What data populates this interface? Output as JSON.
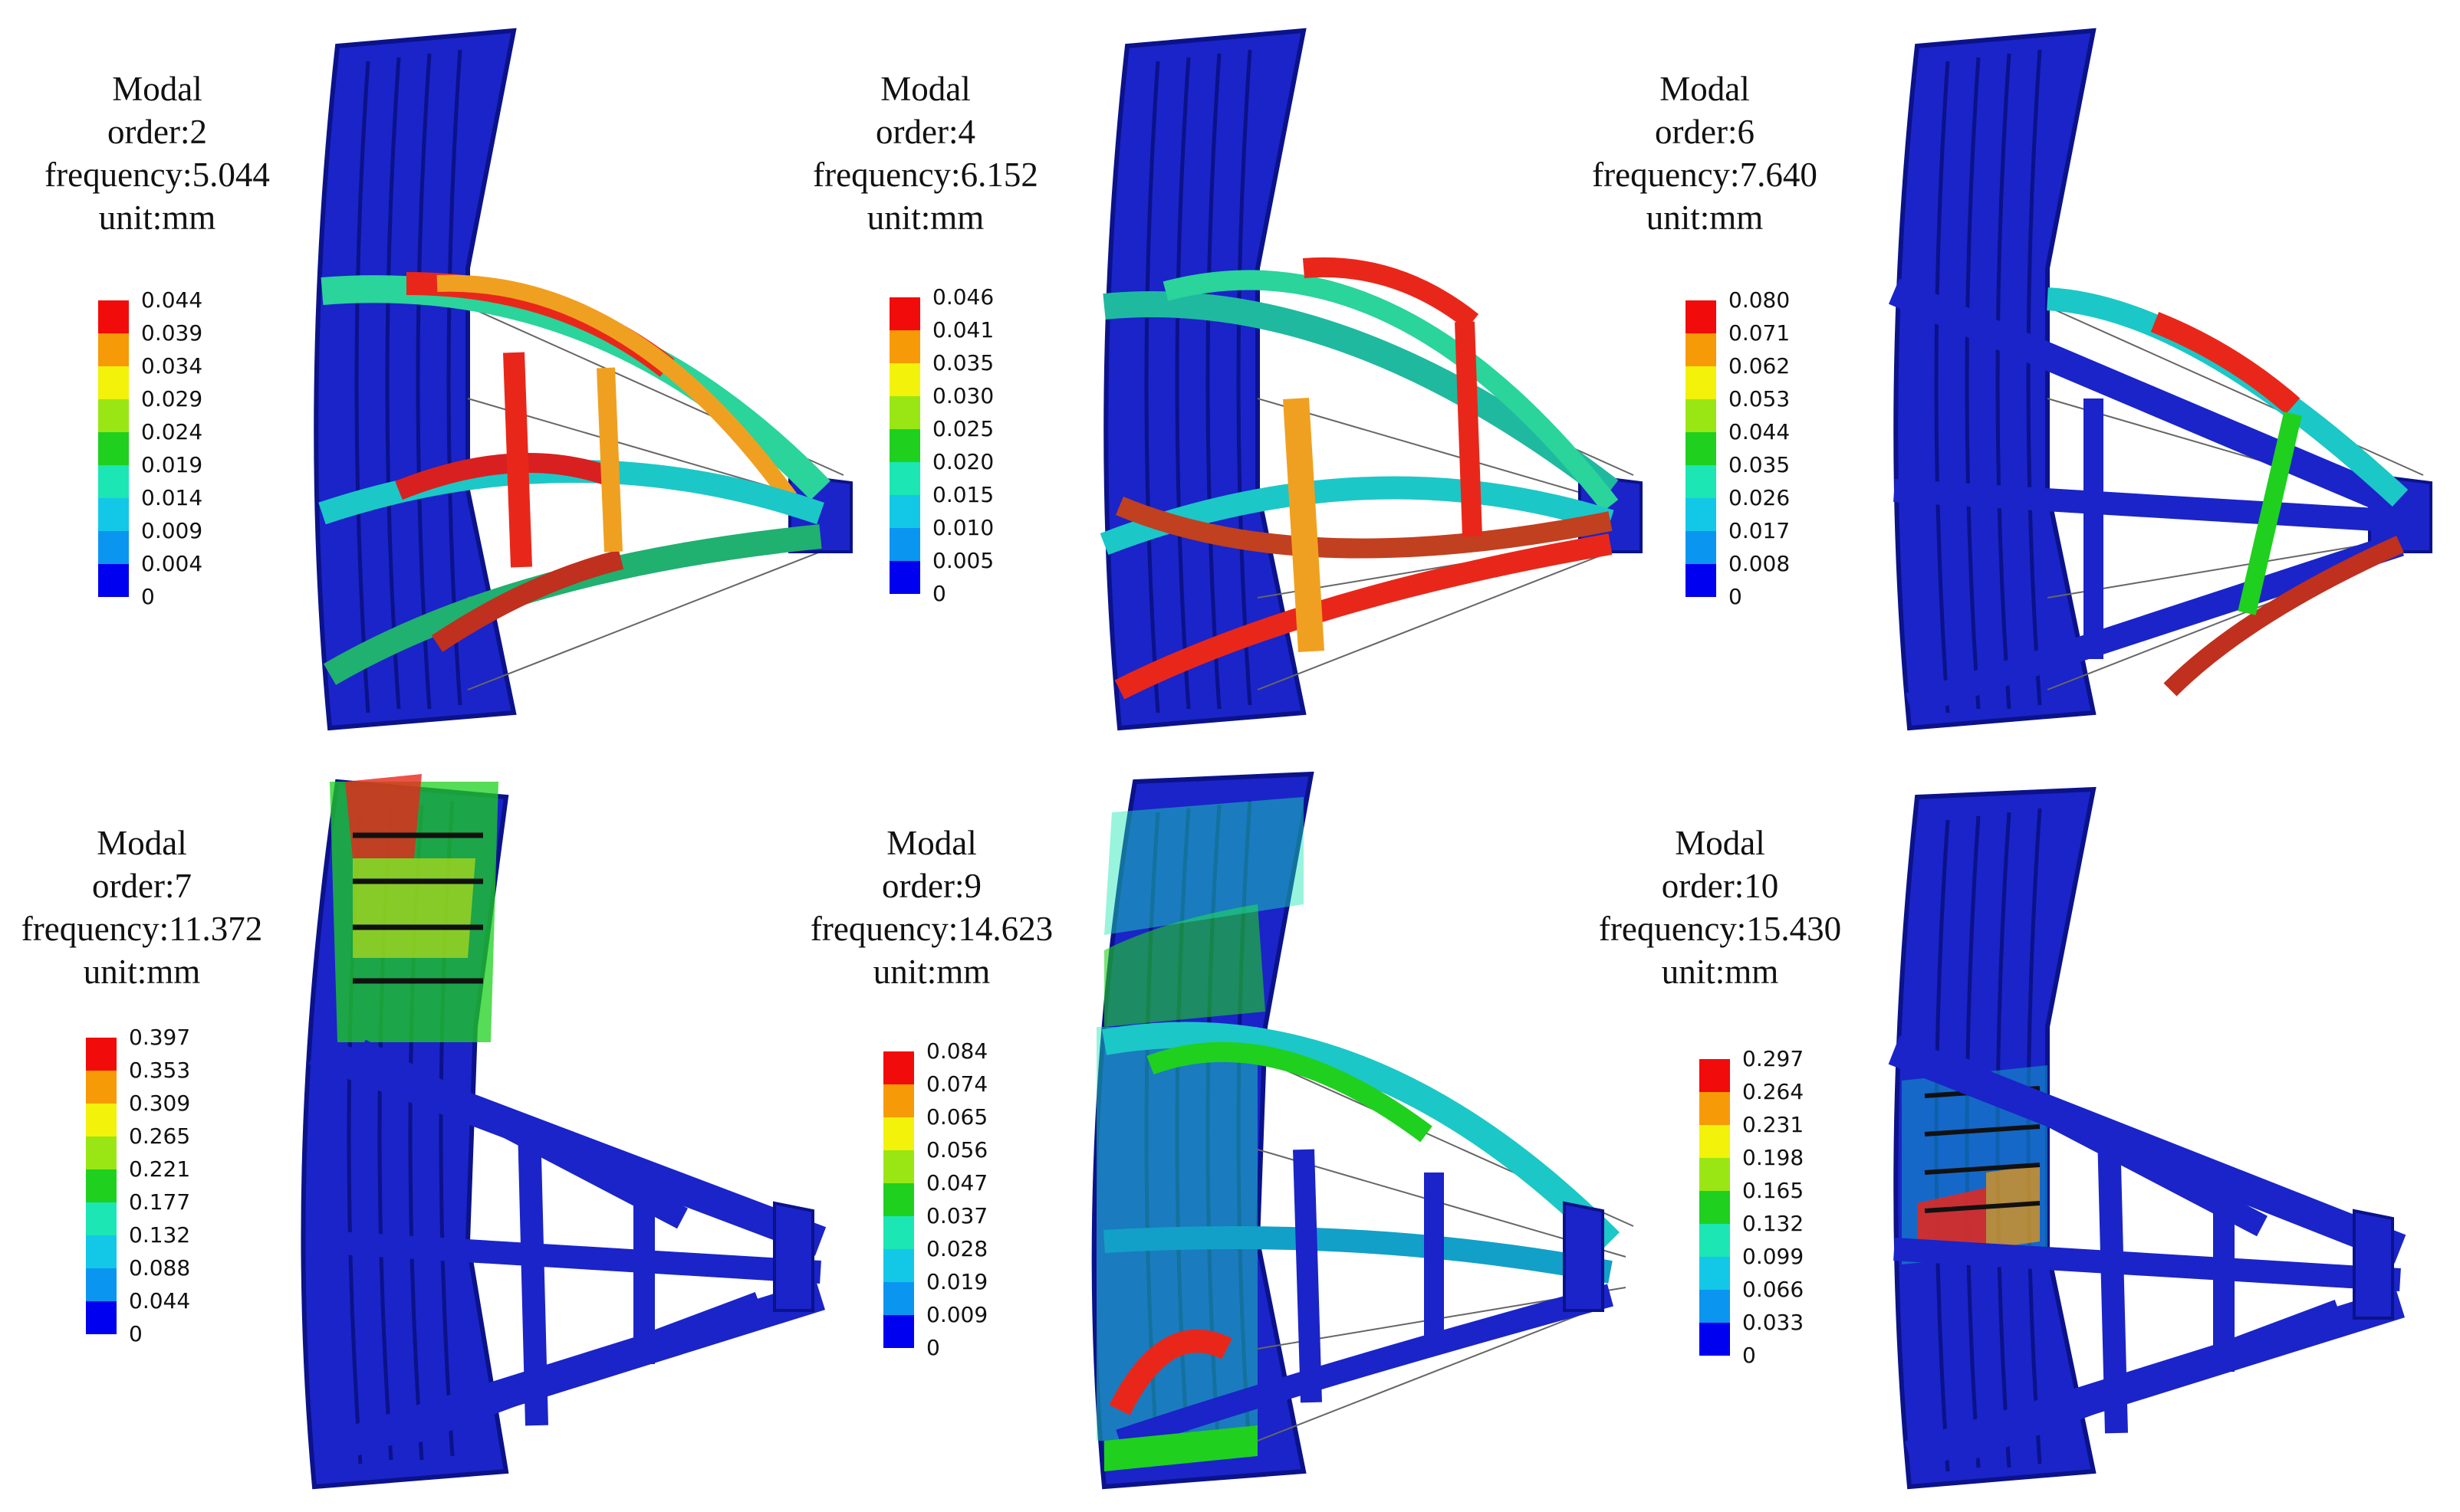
{
  "panels": [
    {
      "title": {
        "line1": "Modal",
        "line2": "order:2",
        "line3": "frequency:5.044",
        "line4": "unit:mm"
      },
      "legend": [
        "0.044",
        "0.039",
        "0.034",
        "0.029",
        "0.024",
        "0.019",
        "0.014",
        "0.009",
        "0.004",
        "0"
      ]
    },
    {
      "title": {
        "line1": "Modal",
        "line2": "order:4",
        "line3": "frequency:6.152",
        "line4": "unit:mm"
      },
      "legend": [
        "0.046",
        "0.041",
        "0.035",
        "0.030",
        "0.025",
        "0.020",
        "0.015",
        "0.010",
        "0.005",
        "0"
      ]
    },
    {
      "title": {
        "line1": "Modal",
        "line2": "order:6",
        "line3": "frequency:7.640",
        "line4": "unit:mm"
      },
      "legend": [
        "0.080",
        "0.071",
        "0.062",
        "0.053",
        "0.044",
        "0.035",
        "0.026",
        "0.017",
        "0.008",
        "0"
      ]
    },
    {
      "title": {
        "line1": "Modal",
        "line2": "order:7",
        "line3": "frequency:11.372",
        "line4": "unit:mm"
      },
      "legend": [
        "0.397",
        "0.353",
        "0.309",
        "0.265",
        "0.221",
        "0.177",
        "0.132",
        "0.088",
        "0.044",
        "0"
      ]
    },
    {
      "title": {
        "line1": "Modal",
        "line2": "order:9",
        "line3": "frequency:14.623",
        "line4": "unit:mm"
      },
      "legend": [
        "0.084",
        "0.074",
        "0.065",
        "0.056",
        "0.047",
        "0.037",
        "0.028",
        "0.019",
        "0.009",
        "0"
      ]
    },
    {
      "title": {
        "line1": "Modal",
        "line2": "order:10",
        "line3": "frequency:15.430",
        "line4": "unit:mm"
      },
      "legend": [
        "0.297",
        "0.264",
        "0.231",
        "0.198",
        "0.165",
        "0.132",
        "0.099",
        "0.066",
        "0.033",
        "0"
      ]
    }
  ],
  "colormap": [
    "#f20b0b",
    "#f79a07",
    "#f2f20a",
    "#9ae614",
    "#1fd01f",
    "#1ce6b4",
    "#12c8e6",
    "#0a96f0",
    "#0000f0"
  ],
  "colors": {
    "structure": "#1a24c8",
    "structure_dark": "#0b128a",
    "wire": "#555555"
  }
}
